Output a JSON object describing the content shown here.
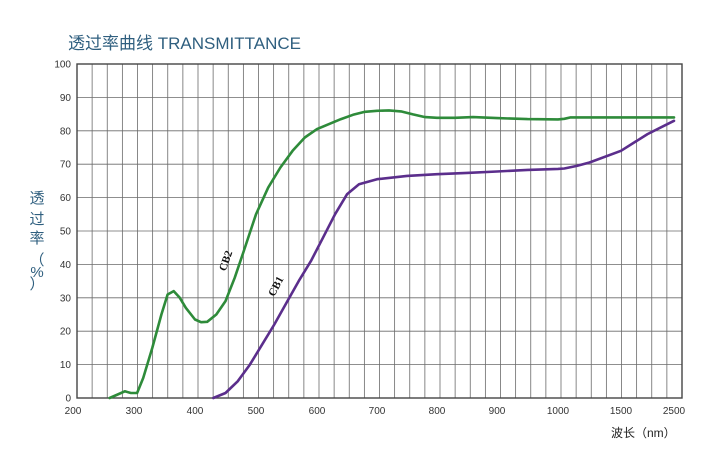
{
  "chart_data": {
    "type": "line",
    "title": "透过率曲线 TRANSMITTANCE",
    "ylabel_chars": [
      "透",
      "过",
      "率",
      "（",
      "%",
      "）"
    ],
    "xlabel": "波长（nm）",
    "x_tick_labels": [
      "200",
      "300",
      "400",
      "500",
      "600",
      "700",
      "800",
      "900",
      "1000",
      "1500",
      "2500"
    ],
    "y_ticks": [
      0,
      10,
      20,
      30,
      40,
      50,
      60,
      70,
      80,
      90,
      100
    ],
    "ylim": [
      0,
      100
    ],
    "grid": true,
    "series": [
      {
        "name": "CB2",
        "color": "#2e8b3a",
        "points": [
          [
            260,
            0
          ],
          [
            275,
            1.2
          ],
          [
            285,
            2
          ],
          [
            295,
            1.5
          ],
          [
            305,
            1.5
          ],
          [
            315,
            6
          ],
          [
            330,
            15
          ],
          [
            345,
            25
          ],
          [
            355,
            31
          ],
          [
            365,
            32
          ],
          [
            375,
            30
          ],
          [
            385,
            27
          ],
          [
            400,
            23.5
          ],
          [
            410,
            22.7
          ],
          [
            420,
            22.8
          ],
          [
            435,
            25
          ],
          [
            450,
            29
          ],
          [
            465,
            36
          ],
          [
            480,
            44
          ],
          [
            500,
            55
          ],
          [
            520,
            63
          ],
          [
            540,
            69
          ],
          [
            560,
            74
          ],
          [
            580,
            78
          ],
          [
            600,
            80.5
          ],
          [
            620,
            82
          ],
          [
            640,
            83.5
          ],
          [
            660,
            84.8
          ],
          [
            680,
            85.7
          ],
          [
            700,
            86
          ],
          [
            720,
            86.1
          ],
          [
            740,
            85.8
          ],
          [
            760,
            84.9
          ],
          [
            780,
            84.1
          ],
          [
            800,
            83.9
          ],
          [
            830,
            83.9
          ],
          [
            860,
            84.1
          ],
          [
            900,
            83.8
          ],
          [
            950,
            83.5
          ],
          [
            1000,
            83.4
          ],
          [
            1050,
            83.6
          ],
          [
            1100,
            84
          ],
          [
            1200,
            84
          ],
          [
            1500,
            84
          ],
          [
            2500,
            84
          ]
        ]
      },
      {
        "name": "CB1",
        "color": "#5b2e8c",
        "points": [
          [
            430,
            0
          ],
          [
            450,
            1.5
          ],
          [
            470,
            5
          ],
          [
            490,
            10
          ],
          [
            510,
            16
          ],
          [
            530,
            22
          ],
          [
            550,
            28.5
          ],
          [
            570,
            35
          ],
          [
            590,
            41
          ],
          [
            610,
            48
          ],
          [
            630,
            55
          ],
          [
            650,
            61
          ],
          [
            670,
            64
          ],
          [
            700,
            65.5
          ],
          [
            750,
            66.5
          ],
          [
            800,
            67
          ],
          [
            850,
            67.4
          ],
          [
            900,
            67.8
          ],
          [
            950,
            68.3
          ],
          [
            1000,
            68.6
          ],
          [
            1050,
            68.7
          ],
          [
            1150,
            69.5
          ],
          [
            1250,
            70.5
          ],
          [
            1500,
            74
          ],
          [
            2000,
            79
          ],
          [
            2500,
            83
          ]
        ]
      }
    ]
  }
}
